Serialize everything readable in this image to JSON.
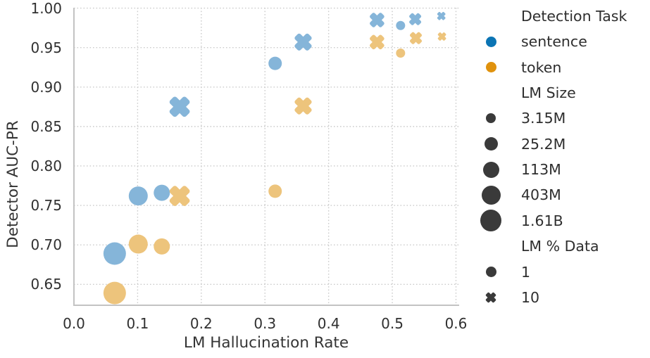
{
  "colors": {
    "sentence_legend": "#0b74b4",
    "token_legend": "#e0920d",
    "sentence_fill": "#85b5d9",
    "token_fill": "#edc47c",
    "neutral_marker": "#3a3a3a",
    "grid": "#cccccc",
    "spine": "#c3c3c3",
    "text": "#303030"
  },
  "chart_data": {
    "type": "scatter",
    "title": "",
    "xlabel": "LM Hallucination Rate",
    "ylabel": "Detector AUC-PR",
    "xlim": [
      0.0,
      0.605
    ],
    "ylim": [
      0.6235,
      1.0005
    ],
    "grid": "dotted",
    "x_ticks": [
      {
        "value": 0.0,
        "label": "0.0"
      },
      {
        "value": 0.1,
        "label": "0.1"
      },
      {
        "value": 0.2,
        "label": "0.2"
      },
      {
        "value": 0.3,
        "label": "0.3"
      },
      {
        "value": 0.4,
        "label": "0.4"
      },
      {
        "value": 0.5,
        "label": "0.5"
      },
      {
        "value": 0.6,
        "label": "0.6"
      }
    ],
    "y_ticks": [
      {
        "value": 0.65,
        "label": "0.65"
      },
      {
        "value": 0.7,
        "label": "0.70"
      },
      {
        "value": 0.75,
        "label": "0.75"
      },
      {
        "value": 0.8,
        "label": "0.80"
      },
      {
        "value": 0.85,
        "label": "0.85"
      },
      {
        "value": 0.9,
        "label": "0.90"
      },
      {
        "value": 0.95,
        "label": "0.95"
      },
      {
        "value": 1.0,
        "label": "1.00"
      }
    ],
    "series": [
      {
        "task": "sentence",
        "lm_pct_data": 1,
        "marker": "circle",
        "color": "#85b5d9",
        "points": [
          {
            "x": 0.064,
            "y": 0.689,
            "lm_size": "1.61B"
          },
          {
            "x": 0.101,
            "y": 0.762,
            "lm_size": "403M"
          },
          {
            "x": 0.138,
            "y": 0.766,
            "lm_size": "113M"
          },
          {
            "x": 0.316,
            "y": 0.93,
            "lm_size": "25.2M"
          },
          {
            "x": 0.513,
            "y": 0.978,
            "lm_size": "3.15M"
          }
        ]
      },
      {
        "task": "sentence",
        "lm_pct_data": 10,
        "marker": "x",
        "color": "#85b5d9",
        "points": [
          {
            "x": 0.166,
            "y": 0.875,
            "lm_size": "1.61B"
          },
          {
            "x": 0.36,
            "y": 0.957,
            "lm_size": "403M"
          },
          {
            "x": 0.476,
            "y": 0.985,
            "lm_size": "113M"
          },
          {
            "x": 0.536,
            "y": 0.986,
            "lm_size": "25.2M"
          },
          {
            "x": 0.577,
            "y": 0.99,
            "lm_size": "3.15M"
          }
        ]
      },
      {
        "task": "token",
        "lm_pct_data": 1,
        "marker": "circle",
        "color": "#edc47c",
        "points": [
          {
            "x": 0.064,
            "y": 0.639,
            "lm_size": "1.61B"
          },
          {
            "x": 0.101,
            "y": 0.701,
            "lm_size": "403M"
          },
          {
            "x": 0.138,
            "y": 0.698,
            "lm_size": "113M"
          },
          {
            "x": 0.316,
            "y": 0.768,
            "lm_size": "25.2M"
          },
          {
            "x": 0.513,
            "y": 0.943,
            "lm_size": "3.15M"
          }
        ]
      },
      {
        "task": "token",
        "lm_pct_data": 10,
        "marker": "x",
        "color": "#edc47c",
        "points": [
          {
            "x": 0.166,
            "y": 0.762,
            "lm_size": "1.61B"
          },
          {
            "x": 0.36,
            "y": 0.876,
            "lm_size": "403M"
          },
          {
            "x": 0.476,
            "y": 0.957,
            "lm_size": "113M"
          },
          {
            "x": 0.537,
            "y": 0.962,
            "lm_size": "25.2M"
          },
          {
            "x": 0.578,
            "y": 0.964,
            "lm_size": "3.15M"
          }
        ]
      }
    ]
  },
  "legend": {
    "sections": [
      {
        "title": "Detection Task",
        "items": [
          {
            "label": "sentence",
            "marker": "circle",
            "color": "#0b74b4"
          },
          {
            "label": "token",
            "marker": "circle",
            "color": "#e0920d"
          }
        ]
      },
      {
        "title": "LM Size",
        "items": [
          {
            "label": "3.15M",
            "marker": "circle",
            "color": "#3a3a3a"
          },
          {
            "label": "25.2M",
            "marker": "circle",
            "color": "#3a3a3a"
          },
          {
            "label": "113M",
            "marker": "circle",
            "color": "#3a3a3a"
          },
          {
            "label": "403M",
            "marker": "circle",
            "color": "#3a3a3a"
          },
          {
            "label": "1.61B",
            "marker": "circle",
            "color": "#3a3a3a"
          }
        ]
      },
      {
        "title": "LM % Data",
        "items": [
          {
            "label": "1",
            "marker": "circle",
            "color": "#3a3a3a"
          },
          {
            "label": "10",
            "marker": "x",
            "color": "#3a3a3a"
          }
        ]
      }
    ]
  }
}
